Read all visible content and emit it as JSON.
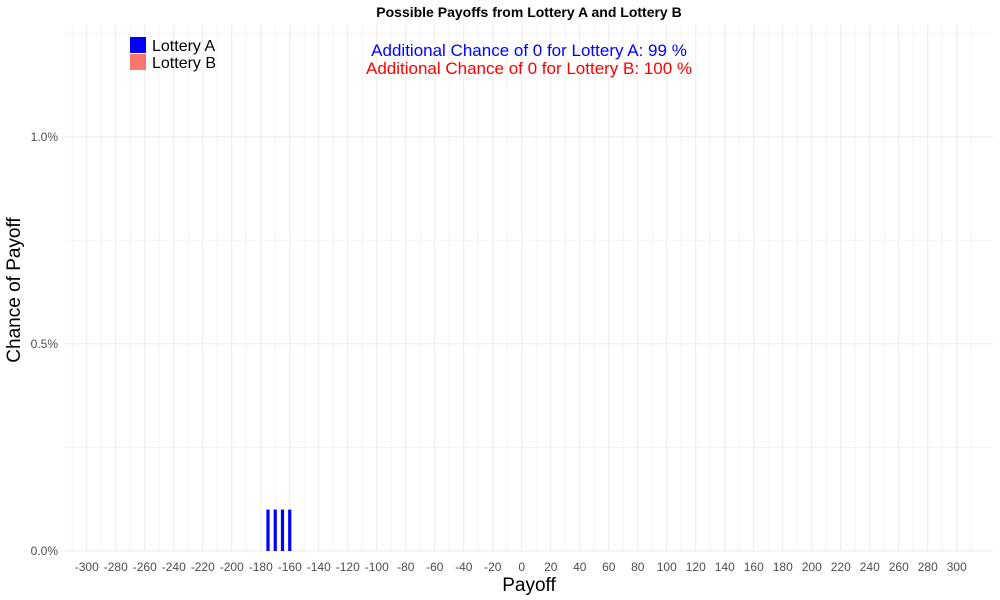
{
  "chart_data": {
    "type": "bar",
    "title": "Possible Payoffs from Lottery A and Lottery B",
    "xlabel": "Payoff",
    "ylabel": "Chance of Payoff",
    "xlim": [
      -315,
      325
    ],
    "ylim": [
      0,
      1.27
    ],
    "x_ticks": [
      -300,
      -280,
      -260,
      -240,
      -220,
      -200,
      -180,
      -160,
      -140,
      -120,
      -100,
      -80,
      -60,
      -40,
      -20,
      0,
      20,
      40,
      60,
      80,
      100,
      120,
      140,
      160,
      180,
      200,
      220,
      240,
      260,
      280,
      300
    ],
    "x_tick_labels": [
      "-300",
      "-280",
      "-260",
      "-240",
      "-220",
      "-200",
      "-180",
      "-160",
      "-140",
      "-120",
      "-100",
      "-80",
      "-60",
      "-40",
      "-20",
      "0",
      "20",
      "40",
      "60",
      "80",
      "100",
      "120",
      "140",
      "160",
      "180",
      "200",
      "220",
      "240",
      "260",
      "280",
      "300"
    ],
    "y_ticks": [
      0,
      0.5,
      1.0
    ],
    "y_tick_labels": [
      "0.0%",
      "0.5%",
      "1.0%"
    ],
    "grid": true,
    "legend_position": "top-left",
    "series": [
      {
        "name": "Lottery A",
        "color": "#0000ff",
        "x": [
          -175,
          -170,
          -165,
          -160
        ],
        "values": [
          0.1,
          0.1,
          0.1,
          0.1
        ]
      },
      {
        "name": "Lottery B",
        "color": "#f8766d",
        "x": [],
        "values": []
      }
    ],
    "annotations": [
      {
        "text": "Additional Chance of 0 for Lottery A:  99 %",
        "color": "#0000ff"
      },
      {
        "text": "Additional Chance of 0 for Lottery B:  100 %",
        "color": "#ff0000"
      }
    ]
  }
}
